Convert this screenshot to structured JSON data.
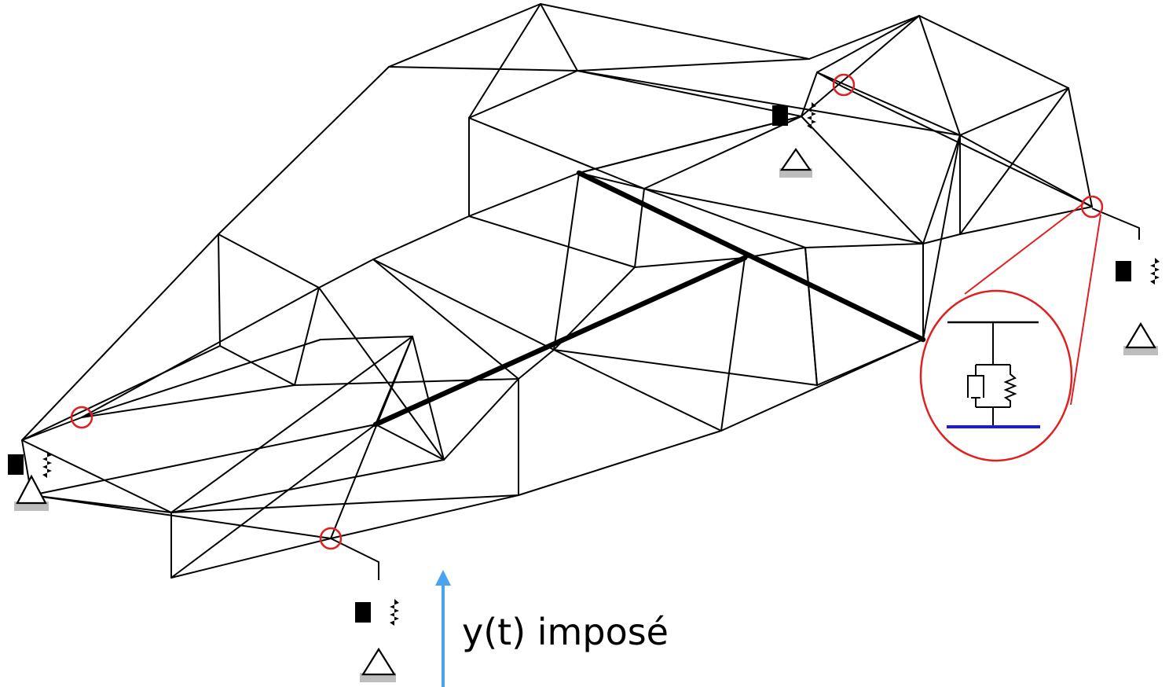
{
  "diagram": {
    "input_label": "y(t) imposé",
    "colors": {
      "frame": "#000000",
      "joint_marker": "#e02020",
      "input_arrow": "#4aa3f0",
      "ground_line": "#1a1ae0"
    },
    "components": [
      "chassis-frame",
      "spring-damper",
      "ground-support",
      "joint-marker",
      "zoom-callout",
      "input-arrow"
    ]
  }
}
